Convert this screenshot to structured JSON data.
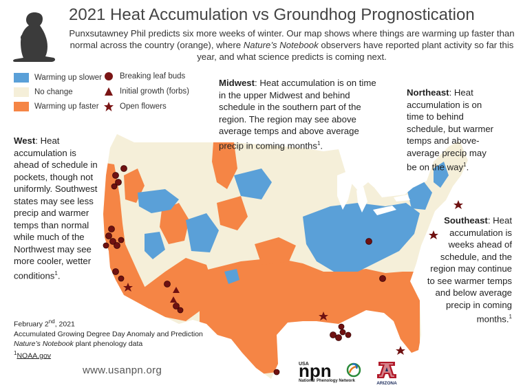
{
  "title": "2021 Heat Accumulation vs Groundhog Prognostication",
  "intro": {
    "part1": "Punxsutawney Phil predicts six more weeks of winter. Our map shows where things are warming up faster than normal across the country (orange), where ",
    "italic": "Nature’s Notebook",
    "part2": " observers have reported plant activity so far this year, and what science predicts is coming next."
  },
  "legend": {
    "colors": [
      {
        "label": "Warming up slower",
        "color": "#5aa0d8"
      },
      {
        "label": "No change",
        "color": "#f5efd9"
      },
      {
        "label": "Warming up faster",
        "color": "#f58545"
      }
    ],
    "symbols": [
      {
        "label": "Breaking leaf buds",
        "shape": "circle",
        "color": "#7a1515"
      },
      {
        "label": "Initial growth (forbs)",
        "shape": "triangle",
        "color": "#7a1515"
      },
      {
        "label": "Open flowers",
        "shape": "star",
        "color": "#7a1515"
      }
    ]
  },
  "regions": {
    "west": {
      "name": "West",
      "text": ": Heat accumulation is ahead of schedule in pockets, though not uniformly. Southwest states may see less precip and warmer temps than normal while much of the Northwest may see more cooler, wetter conditions",
      "note": "1",
      "end": "."
    },
    "midwest": {
      "name": "Midwest",
      "text": ": Heat accumulation is on time in the upper Midwest and behind schedule in the southern part of the region. The region may see above average temps and above average precip in coming months",
      "note": "1",
      "end": "."
    },
    "northeast": {
      "name": "Northeast",
      "text": ": Heat accumulation is on time to behind schedule, but warmer temps and above-average precip may be on the way",
      "note": "1",
      "end": "."
    },
    "southeast": {
      "name": "Southeast",
      "text": ": Heat accumulation is weeks ahead of schedule, and the region may continue to see warmer temps and below average precip in coming months.",
      "note": "1",
      "end": ""
    }
  },
  "footer": {
    "date": "February 2",
    "date_sup": "nd",
    "date_year": ", 2021",
    "line2": "Accumulated Growing Degree Day Anomaly and Prediction",
    "line3_italic": "Nature’s Notebook",
    "line3_rest": " plant phenology data",
    "source_note": "1",
    "source": "NOAA.gov"
  },
  "website": "www.usanpn.org",
  "logos": {
    "npn_small": "USA",
    "npn_big": "npn",
    "npn_sub1": "National",
    "npn_sub2": "Phenology Network",
    "arizona": "ARIZONA"
  }
}
